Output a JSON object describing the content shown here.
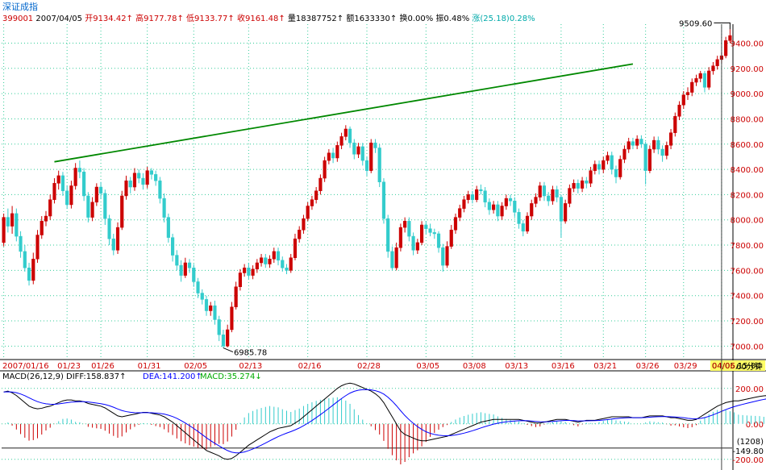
{
  "header": {
    "title": "深证成指",
    "code": "399001",
    "date": "2007/04/05",
    "open": "开9134.42↑",
    "high": "高9177.78↑",
    "low": "低9133.77↑",
    "close": "收9161.48↑",
    "volume": "量18387752↑",
    "amount": "额1633330↑",
    "turnover": "换0.00%",
    "amplitude": "振0.48%",
    "change": "涨(25.18)0.28%"
  },
  "colors": {
    "up": "#cc0000",
    "down": "#33cccc",
    "grid": "#33cc99",
    "trendline": "#008800",
    "diff": "#000000",
    "dea": "#0000ff",
    "axis_text_red": "#cc0000",
    "axis_text_black": "#000000"
  },
  "chart_data": [
    {
      "type": "candlestick",
      "period": "60分钟",
      "ylim": [
        6900,
        9550
      ],
      "y_ticks": [
        "9400.00",
        "9200.00",
        "9000.00",
        "8800.00",
        "8600.00",
        "8400.00",
        "8200.00",
        "8000.00",
        "7800.00",
        "7600.00",
        "7400.00",
        "7200.00",
        "7000.00"
      ],
      "x_tick_labels": [
        "2007/01/16",
        "01/23",
        "01/26",
        "01/31",
        "02/05",
        "02/13",
        "02/16",
        "02/28",
        "03/05",
        "03/08",
        "03/13",
        "03/16",
        "03/21",
        "03/26",
        "03/29",
        "04/05,15:00",
        "04/06"
      ],
      "annotations": [
        {
          "text": "9509.60",
          "value": 9509.6
        },
        {
          "text": "6985.78",
          "value": 6985.78
        }
      ],
      "trendline": {
        "from_bar": 12,
        "from_value": 8460,
        "to_bar": 149,
        "to_value": 9235
      },
      "candles": [
        [
          7820,
          8020,
          8050,
          7790
        ],
        [
          8020,
          7950,
          8090,
          7900
        ],
        [
          7950,
          8050,
          8110,
          7890
        ],
        [
          8050,
          7870,
          8090,
          7830
        ],
        [
          7870,
          7750,
          7910,
          7700
        ],
        [
          7750,
          7620,
          7800,
          7590
        ],
        [
          7620,
          7520,
          7660,
          7480
        ],
        [
          7520,
          7690,
          7740,
          7490
        ],
        [
          7690,
          7880,
          7920,
          7660
        ],
        [
          7880,
          7990,
          8030,
          7850
        ],
        [
          7990,
          8030,
          8070,
          7950
        ],
        [
          8030,
          8160,
          8200,
          8000
        ],
        [
          8160,
          8290,
          8330,
          8130
        ],
        [
          8290,
          8350,
          8390,
          8240
        ],
        [
          8350,
          8230,
          8380,
          8190
        ],
        [
          8230,
          8120,
          8270,
          8090
        ],
        [
          8120,
          8270,
          8310,
          8090
        ],
        [
          8270,
          8410,
          8450,
          8240
        ],
        [
          8410,
          8380,
          8470,
          8330
        ],
        [
          8380,
          8190,
          8410,
          8150
        ],
        [
          8190,
          8020,
          8220,
          7980
        ],
        [
          8020,
          8140,
          8180,
          7990
        ],
        [
          8140,
          8260,
          8290,
          8110
        ],
        [
          8260,
          8210,
          8300,
          8170
        ],
        [
          8210,
          8010,
          8240,
          7960
        ],
        [
          8010,
          7850,
          8040,
          7800
        ],
        [
          7850,
          7760,
          7890,
          7720
        ],
        [
          7760,
          7940,
          7980,
          7730
        ],
        [
          7940,
          8190,
          8230,
          7920
        ],
        [
          8190,
          8310,
          8350,
          8160
        ],
        [
          8310,
          8260,
          8340,
          8210
        ],
        [
          8260,
          8370,
          8410,
          8230
        ],
        [
          8370,
          8330,
          8400,
          8290
        ],
        [
          8330,
          8280,
          8370,
          8240
        ],
        [
          8280,
          8390,
          8420,
          8250
        ],
        [
          8390,
          8360,
          8410,
          8320
        ],
        [
          8360,
          8310,
          8390,
          8270
        ],
        [
          8310,
          8170,
          8340,
          8130
        ],
        [
          8170,
          8020,
          8210,
          7980
        ],
        [
          8020,
          7860,
          8050,
          7820
        ],
        [
          7860,
          7720,
          7890,
          7670
        ],
        [
          7720,
          7640,
          7760,
          7600
        ],
        [
          7640,
          7560,
          7680,
          7510
        ],
        [
          7560,
          7660,
          7700,
          7540
        ],
        [
          7660,
          7620,
          7690,
          7580
        ],
        [
          7620,
          7510,
          7650,
          7470
        ],
        [
          7510,
          7420,
          7540,
          7380
        ],
        [
          7420,
          7370,
          7450,
          7330
        ],
        [
          7370,
          7280,
          7400,
          7240
        ],
        [
          7280,
          7320,
          7350,
          7240
        ],
        [
          7320,
          7210,
          7360,
          7170
        ],
        [
          7210,
          7090,
          7240,
          7040
        ],
        [
          7090,
          7000,
          7130,
          6985
        ],
        [
          7000,
          7130,
          7170,
          6990
        ],
        [
          7130,
          7310,
          7350,
          7110
        ],
        [
          7310,
          7470,
          7510,
          7290
        ],
        [
          7470,
          7580,
          7610,
          7440
        ],
        [
          7580,
          7620,
          7650,
          7550
        ],
        [
          7620,
          7560,
          7660,
          7530
        ],
        [
          7560,
          7610,
          7640,
          7530
        ],
        [
          7610,
          7660,
          7690,
          7580
        ],
        [
          7660,
          7700,
          7730,
          7630
        ],
        [
          7700,
          7650,
          7730,
          7620
        ],
        [
          7650,
          7690,
          7720,
          7620
        ],
        [
          7690,
          7750,
          7780,
          7660
        ],
        [
          7750,
          7680,
          7780,
          7640
        ],
        [
          7680,
          7620,
          7710,
          7590
        ],
        [
          7620,
          7600,
          7650,
          7570
        ],
        [
          7600,
          7700,
          7730,
          7580
        ],
        [
          7700,
          7850,
          7890,
          7680
        ],
        [
          7850,
          7920,
          7950,
          7820
        ],
        [
          7920,
          8010,
          8040,
          7890
        ],
        [
          8010,
          8110,
          8140,
          7990
        ],
        [
          8110,
          8160,
          8190,
          8080
        ],
        [
          8160,
          8230,
          8260,
          8130
        ],
        [
          8230,
          8330,
          8360,
          8200
        ],
        [
          8330,
          8470,
          8500,
          8300
        ],
        [
          8470,
          8530,
          8560,
          8440
        ],
        [
          8530,
          8490,
          8570,
          8450
        ],
        [
          8490,
          8590,
          8620,
          8460
        ],
        [
          8590,
          8660,
          8690,
          8560
        ],
        [
          8660,
          8720,
          8750,
          8630
        ],
        [
          8720,
          8610,
          8740,
          8570
        ],
        [
          8610,
          8520,
          8640,
          8480
        ],
        [
          8520,
          8580,
          8610,
          8490
        ],
        [
          8580,
          8470,
          8610,
          8430
        ],
        [
          8470,
          8390,
          8500,
          8350
        ],
        [
          8390,
          8610,
          8640,
          8370
        ],
        [
          8610,
          8570,
          8640,
          8530
        ],
        [
          8570,
          8300,
          8600,
          8260
        ],
        [
          8300,
          8010,
          8330,
          7970
        ],
        [
          8010,
          7750,
          8040,
          7700
        ],
        [
          7750,
          7620,
          7790,
          7600
        ],
        [
          7620,
          7780,
          7820,
          7600
        ],
        [
          7780,
          7940,
          7970,
          7750
        ],
        [
          7940,
          7990,
          8020,
          7900
        ],
        [
          7990,
          7870,
          8020,
          7830
        ],
        [
          7870,
          7760,
          7900,
          7720
        ],
        [
          7760,
          7820,
          7850,
          7730
        ],
        [
          7820,
          7960,
          7990,
          7800
        ],
        [
          7960,
          7930,
          7990,
          7890
        ],
        [
          7930,
          7900,
          7970,
          7870
        ],
        [
          7900,
          7890,
          7930,
          7850
        ],
        [
          7890,
          7780,
          7910,
          7740
        ],
        [
          7780,
          7640,
          7810,
          7590
        ],
        [
          7640,
          7790,
          7830,
          7620
        ],
        [
          7790,
          7920,
          7960,
          7770
        ],
        [
          7920,
          8020,
          8050,
          7890
        ],
        [
          8020,
          8090,
          8120,
          7990
        ],
        [
          8090,
          8160,
          8190,
          8060
        ],
        [
          8160,
          8200,
          8230,
          8130
        ],
        [
          8200,
          8160,
          8230,
          8130
        ],
        [
          8160,
          8240,
          8270,
          8140
        ],
        [
          8240,
          8230,
          8280,
          8200
        ],
        [
          8230,
          8140,
          8260,
          8100
        ],
        [
          8140,
          8080,
          8170,
          8040
        ],
        [
          8080,
          8120,
          8150,
          8050
        ],
        [
          8120,
          8030,
          8150,
          7990
        ],
        [
          8030,
          8110,
          8140,
          8000
        ],
        [
          8110,
          8170,
          8200,
          8080
        ],
        [
          8170,
          8150,
          8200,
          8110
        ],
        [
          8150,
          8060,
          8180,
          8020
        ],
        [
          8060,
          7970,
          8090,
          7930
        ],
        [
          7970,
          7910,
          8000,
          7870
        ],
        [
          7910,
          8030,
          8060,
          7890
        ],
        [
          8030,
          8130,
          8160,
          8000
        ],
        [
          8130,
          8180,
          8210,
          8100
        ],
        [
          8180,
          8270,
          8300,
          8150
        ],
        [
          8270,
          8190,
          8300,
          8150
        ],
        [
          8190,
          8150,
          8220,
          8110
        ],
        [
          8150,
          8240,
          8270,
          8120
        ],
        [
          8240,
          8180,
          8270,
          8140
        ],
        [
          8180,
          7990,
          8200,
          7860
        ],
        [
          7990,
          8130,
          8160,
          7970
        ],
        [
          8130,
          8250,
          8280,
          8100
        ],
        [
          8250,
          8290,
          8320,
          8220
        ],
        [
          8290,
          8250,
          8320,
          8210
        ],
        [
          8250,
          8310,
          8340,
          8220
        ],
        [
          8310,
          8290,
          8340,
          8250
        ],
        [
          8290,
          8390,
          8420,
          8260
        ],
        [
          8390,
          8440,
          8470,
          8360
        ],
        [
          8440,
          8400,
          8470,
          8360
        ],
        [
          8400,
          8470,
          8500,
          8370
        ],
        [
          8470,
          8510,
          8540,
          8440
        ],
        [
          8510,
          8400,
          8540,
          8360
        ],
        [
          8400,
          8340,
          8430,
          8290
        ],
        [
          8340,
          8480,
          8510,
          8320
        ],
        [
          8480,
          8560,
          8590,
          8450
        ],
        [
          8560,
          8620,
          8650,
          8530
        ],
        [
          8620,
          8590,
          8650,
          8560
        ],
        [
          8590,
          8640,
          8670,
          8560
        ],
        [
          8640,
          8600,
          8670,
          8570
        ],
        [
          8600,
          8390,
          8620,
          8280
        ],
        [
          8390,
          8560,
          8590,
          8370
        ],
        [
          8560,
          8630,
          8660,
          8530
        ],
        [
          8630,
          8560,
          8660,
          8520
        ],
        [
          8560,
          8510,
          8590,
          8460
        ],
        [
          8510,
          8590,
          8620,
          8480
        ],
        [
          8590,
          8690,
          8720,
          8560
        ],
        [
          8690,
          8820,
          8850,
          8660
        ],
        [
          8820,
          8910,
          8940,
          8790
        ],
        [
          8910,
          8990,
          9020,
          8880
        ],
        [
          8990,
          9010,
          9050,
          8950
        ],
        [
          9010,
          9090,
          9120,
          8980
        ],
        [
          9090,
          9120,
          9150,
          9060
        ],
        [
          9120,
          9160,
          9180,
          9090
        ],
        [
          9160,
          9050,
          9180,
          9010
        ],
        [
          9050,
          9180,
          9210,
          9030
        ],
        [
          9180,
          9220,
          9250,
          9150
        ],
        [
          9220,
          9270,
          9300,
          9190
        ],
        [
          9270,
          9300,
          9330,
          9240
        ],
        [
          9300,
          9420,
          9450,
          9280
        ],
        [
          9420,
          9460,
          9509,
          9400
        ]
      ]
    },
    {
      "type": "macd",
      "params": "MACD(26,12,9)",
      "labels": {
        "diff": "DIFF:158.837↑",
        "dea": "DEA:141.200↑",
        "macd": "MACD:35.274↓"
      },
      "ylim": [
        -260,
        290
      ],
      "y_ticks": [
        "200.00",
        "0.00",
        "-200.00"
      ],
      "extra_labels": [
        "(1208)",
        "-149.80"
      ],
      "diff": [
        180,
        185,
        175,
        160,
        140,
        120,
        100,
        90,
        85,
        88,
        95,
        100,
        110,
        120,
        130,
        135,
        135,
        130,
        130,
        125,
        115,
        110,
        105,
        100,
        90,
        75,
        60,
        45,
        40,
        45,
        50,
        55,
        60,
        65,
        65,
        60,
        55,
        50,
        40,
        25,
        10,
        -10,
        -30,
        -50,
        -70,
        -90,
        -110,
        -130,
        -150,
        -160,
        -170,
        -180,
        -195,
        -200,
        -195,
        -180,
        -160,
        -140,
        -120,
        -105,
        -90,
        -75,
        -60,
        -45,
        -35,
        -25,
        -20,
        -15,
        -10,
        5,
        20,
        40,
        60,
        80,
        100,
        120,
        140,
        160,
        180,
        200,
        215,
        225,
        230,
        225,
        215,
        205,
        195,
        185,
        170,
        150,
        120,
        80,
        40,
        0,
        -40,
        -60,
        -70,
        -80,
        -90,
        -95,
        -95,
        -90,
        -85,
        -80,
        -75,
        -70,
        -60,
        -50,
        -40,
        -30,
        -20,
        -10,
        0,
        10,
        15,
        20,
        25,
        25,
        25,
        25,
        25,
        25,
        25,
        20,
        15,
        10,
        5,
        5,
        10,
        15,
        20,
        25,
        25,
        25,
        20,
        15,
        10,
        15,
        20,
        20,
        20,
        25,
        30,
        35,
        40,
        40,
        40,
        40,
        40,
        35,
        35,
        35,
        40,
        45,
        45,
        45,
        45,
        40,
        35,
        35,
        30,
        25,
        20,
        20,
        25,
        40,
        55,
        70,
        85,
        100,
        110,
        120,
        125,
        130,
        130,
        135,
        140,
        145,
        150,
        155,
        158,
        160
      ]
    }
  ]
}
